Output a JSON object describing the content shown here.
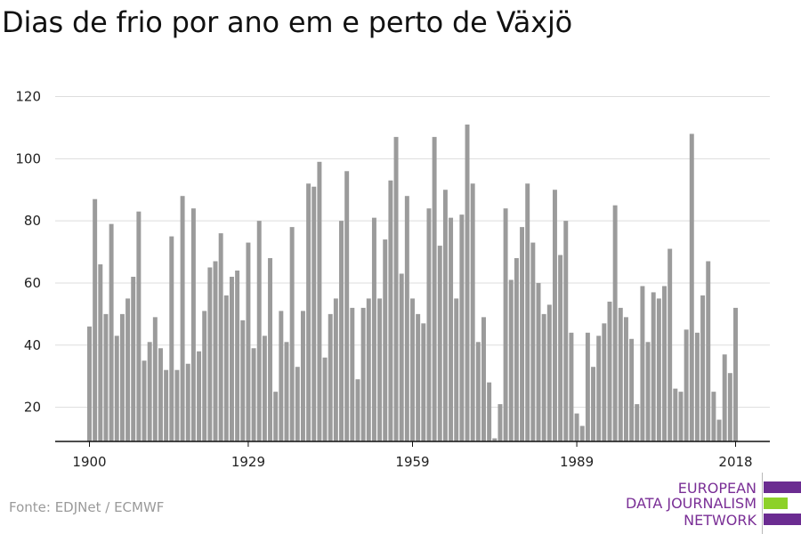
{
  "title": "Dias de frio por ano em e perto de Växjö",
  "source": "Fonte: EDJNet / ECMWF",
  "logo": {
    "line1": "EUROPEAN",
    "line2": "DATA JOURNALISM",
    "line3": "NETWORK",
    "colors": {
      "purple": "#6b2c91",
      "green": "#8dd129",
      "text": "#7a2f96"
    }
  },
  "chart_data": {
    "type": "bar",
    "title": "Dias de frio por ano em e perto de Växjö",
    "xlabel": "",
    "ylabel": "",
    "xlim": [
      1900,
      2018
    ],
    "ylim": [
      9,
      120
    ],
    "xticks": [
      1900,
      1929,
      1959,
      1989,
      2018
    ],
    "yticks": [
      20,
      40,
      60,
      80,
      100,
      120
    ],
    "grid": true,
    "bar_color": "#9b9b9b",
    "x": [
      1900,
      1901,
      1902,
      1903,
      1904,
      1905,
      1906,
      1907,
      1908,
      1909,
      1910,
      1911,
      1912,
      1913,
      1914,
      1915,
      1916,
      1917,
      1918,
      1919,
      1920,
      1921,
      1922,
      1923,
      1924,
      1925,
      1926,
      1927,
      1928,
      1929,
      1930,
      1931,
      1932,
      1933,
      1934,
      1935,
      1936,
      1937,
      1938,
      1939,
      1940,
      1941,
      1942,
      1943,
      1944,
      1945,
      1946,
      1947,
      1948,
      1949,
      1950,
      1951,
      1952,
      1953,
      1954,
      1955,
      1956,
      1957,
      1958,
      1959,
      1960,
      1961,
      1962,
      1963,
      1964,
      1965,
      1966,
      1967,
      1968,
      1969,
      1970,
      1971,
      1972,
      1973,
      1974,
      1975,
      1976,
      1977,
      1978,
      1979,
      1980,
      1981,
      1982,
      1983,
      1984,
      1985,
      1986,
      1987,
      1988,
      1989,
      1990,
      1991,
      1992,
      1993,
      1994,
      1995,
      1996,
      1997,
      1998,
      1999,
      2000,
      2001,
      2002,
      2003,
      2004,
      2005,
      2006,
      2007,
      2008,
      2009,
      2010,
      2011,
      2012,
      2013,
      2014,
      2015,
      2016,
      2017,
      2018
    ],
    "values": [
      46,
      87,
      66,
      50,
      79,
      43,
      50,
      55,
      62,
      83,
      35,
      41,
      49,
      39,
      32,
      75,
      32,
      88,
      34,
      84,
      38,
      51,
      65,
      67,
      76,
      56,
      62,
      64,
      48,
      73,
      39,
      80,
      43,
      68,
      25,
      51,
      41,
      78,
      33,
      51,
      92,
      91,
      99,
      36,
      50,
      55,
      80,
      96,
      52,
      29,
      52,
      55,
      81,
      55,
      74,
      93,
      107,
      63,
      88,
      55,
      50,
      47,
      84,
      107,
      72,
      90,
      81,
      55,
      82,
      111,
      92,
      41,
      49,
      28,
      10,
      21,
      84,
      61,
      68,
      78,
      92,
      73,
      60,
      50,
      53,
      90,
      69,
      80,
      44,
      18,
      14,
      44,
      33,
      43,
      47,
      54,
      85,
      52,
      49,
      42,
      21,
      59,
      41,
      57,
      55,
      59,
      71,
      26,
      25,
      45,
      108,
      44,
      56,
      67,
      25,
      16,
      37,
      31,
      52
    ]
  }
}
